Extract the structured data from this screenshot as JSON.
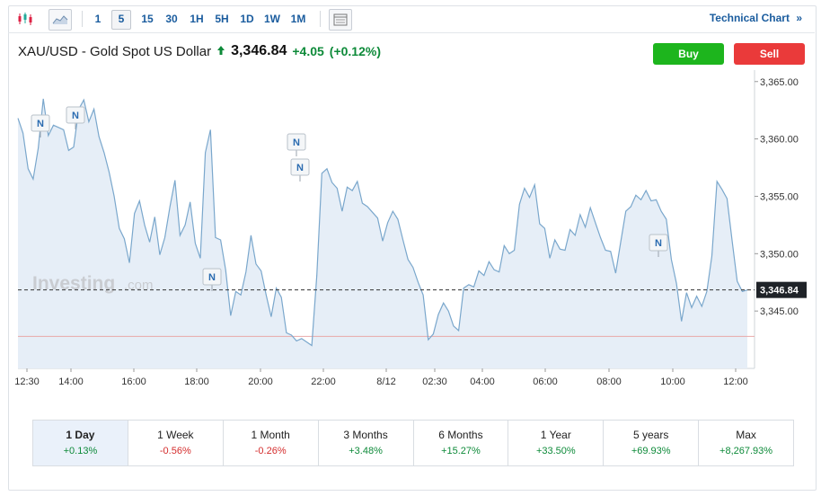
{
  "toolbar": {
    "timeframes": [
      "1",
      "5",
      "15",
      "30",
      "1H",
      "5H",
      "1D",
      "1W",
      "1M"
    ],
    "selected_timeframe": "5",
    "technical_chart_label": "Technical Chart",
    "technical_chart_arrow": "»"
  },
  "header": {
    "instrument": "XAU/USD - Gold Spot US Dollar",
    "price": "3,346.84",
    "change": "+4.05",
    "change_pct": "(+0.12%)"
  },
  "actions": {
    "buy_label": "Buy",
    "sell_label": "Sell"
  },
  "colors": {
    "up": "#0d8a39",
    "down": "#d42d2d",
    "line": "#7aa7cc",
    "area": "#e6eef7",
    "buy": "#1db51d",
    "sell": "#ea3a3a"
  },
  "watermark": {
    "brand": "Investing",
    "suffix": ".com"
  },
  "chart_data": {
    "type": "area",
    "x_ticks": [
      "12:30",
      "14:00",
      "16:00",
      "18:00",
      "20:00",
      "22:00",
      "8/12",
      "02:30",
      "04:00",
      "06:00",
      "08:00",
      "10:00",
      "12:00"
    ],
    "y_ticks": [
      "3,365.00",
      "3,360.00",
      "3,355.00",
      "3,350.00",
      "3,345.00"
    ],
    "ylim": [
      3340.0,
      3366.0
    ],
    "current_price_label": "3,346.84",
    "current_price": 3346.84,
    "previous_close_line": 3342.79,
    "news_marker_label": "N",
    "values": [
      3361.8,
      3360.5,
      3357.4,
      3356.5,
      3359.2,
      3363.5,
      3360.3,
      3361.2,
      3361.0,
      3360.8,
      3359.0,
      3359.3,
      3362.6,
      3363.4,
      3361.5,
      3362.6,
      3360.2,
      3358.8,
      3357.1,
      3355.0,
      3352.2,
      3351.3,
      3349.2,
      3353.5,
      3354.6,
      3352.5,
      3351.0,
      3353.2,
      3349.9,
      3351.4,
      3354.1,
      3356.4,
      3351.6,
      3352.5,
      3354.5,
      3350.9,
      3349.6,
      3358.8,
      3360.8,
      3351.4,
      3351.2,
      3348.6,
      3344.6,
      3346.7,
      3346.4,
      3348.4,
      3351.6,
      3349.1,
      3348.5,
      3346.4,
      3344.5,
      3347.0,
      3346.2,
      3343.1,
      3342.9,
      3342.4,
      3342.6,
      3342.3,
      3342.0,
      3348.1,
      3357.0,
      3357.4,
      3356.2,
      3355.7,
      3353.7,
      3355.8,
      3355.5,
      3356.3,
      3354.4,
      3354.1,
      3353.6,
      3353.1,
      3351.1,
      3352.7,
      3353.7,
      3353.0,
      3351.2,
      3349.5,
      3348.8,
      3347.5,
      3346.4,
      3342.5,
      3343.0,
      3344.7,
      3345.7,
      3345.0,
      3343.7,
      3343.3,
      3347.0,
      3347.3,
      3347.1,
      3348.5,
      3348.1,
      3349.3,
      3348.6,
      3348.4,
      3350.7,
      3350.0,
      3350.3,
      3354.3,
      3355.7,
      3354.9,
      3356.0,
      3352.6,
      3352.2,
      3349.6,
      3351.2,
      3350.4,
      3350.3,
      3352.1,
      3351.6,
      3353.4,
      3352.3,
      3354.0,
      3352.7,
      3351.4,
      3350.3,
      3350.2,
      3348.3,
      3351.0,
      3353.7,
      3354.1,
      3355.1,
      3354.7,
      3355.5,
      3354.6,
      3354.7,
      3353.7,
      3353.0,
      3349.5,
      3347.4,
      3344.1,
      3346.6,
      3345.3,
      3346.3,
      3345.4,
      3346.7,
      3349.8,
      3356.3,
      3355.6,
      3354.8,
      3351.1,
      3347.6,
      3346.7,
      3346.84
    ]
  },
  "periods": [
    {
      "label": "1 Day",
      "change": "+0.13%",
      "dir": "pos"
    },
    {
      "label": "1 Week",
      "change": "-0.56%",
      "dir": "neg"
    },
    {
      "label": "1 Month",
      "change": "-0.26%",
      "dir": "neg"
    },
    {
      "label": "3 Months",
      "change": "+3.48%",
      "dir": "pos"
    },
    {
      "label": "6 Months",
      "change": "+15.27%",
      "dir": "pos"
    },
    {
      "label": "1 Year",
      "change": "+33.50%",
      "dir": "pos"
    },
    {
      "label": "5 years",
      "change": "+69.93%",
      "dir": "pos"
    },
    {
      "label": "Max",
      "change": "+8,267.93%",
      "dir": "pos"
    }
  ]
}
